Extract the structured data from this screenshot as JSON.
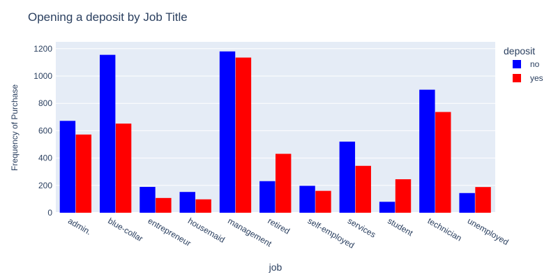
{
  "chart_data": {
    "type": "bar",
    "title": "Opening a deposit by Job Title",
    "xlabel": "job",
    "ylabel": "Frequency of Purchase",
    "categories": [
      "admin.",
      "blue-collar",
      "entrepreneur",
      "housemaid",
      "management",
      "retired",
      "self-employed",
      "services",
      "student",
      "technician",
      "unemployed"
    ],
    "series": [
      {
        "name": "no",
        "color": "#0000ff",
        "values": [
          672,
          1155,
          189,
          152,
          1180,
          231,
          197,
          520,
          80,
          900,
          144
        ]
      },
      {
        "name": "yes",
        "color": "#ff0000",
        "values": [
          572,
          652,
          108,
          98,
          1135,
          431,
          160,
          343,
          245,
          737,
          188
        ]
      }
    ],
    "ylim": [
      0,
      1250
    ],
    "yticks": [
      0,
      200,
      400,
      600,
      800,
      1000,
      1200
    ],
    "legend": {
      "title": "deposit",
      "position": "top-right"
    },
    "background": "#e5ecf6",
    "grid": true
  }
}
